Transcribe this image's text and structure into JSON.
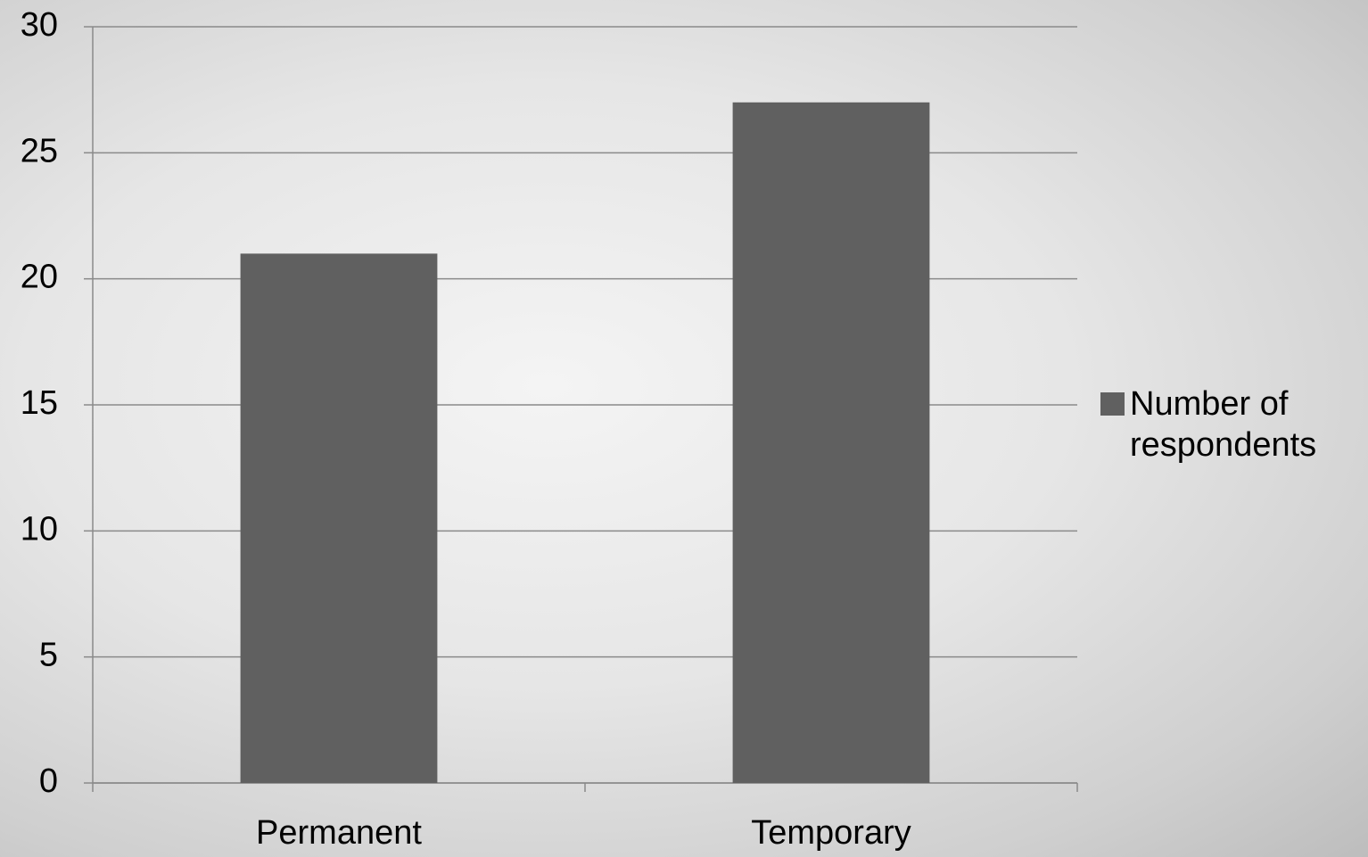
{
  "chart_data": {
    "type": "bar",
    "categories": [
      "Permanent",
      "Temporary"
    ],
    "series": [
      {
        "name": "Number of respondents",
        "color": "#606060",
        "values": [
          21,
          27
        ]
      }
    ],
    "ylim": [
      0,
      30
    ],
    "yticks": [
      0,
      5,
      10,
      15,
      20,
      25,
      30
    ],
    "grid": true,
    "legend": "right"
  }
}
